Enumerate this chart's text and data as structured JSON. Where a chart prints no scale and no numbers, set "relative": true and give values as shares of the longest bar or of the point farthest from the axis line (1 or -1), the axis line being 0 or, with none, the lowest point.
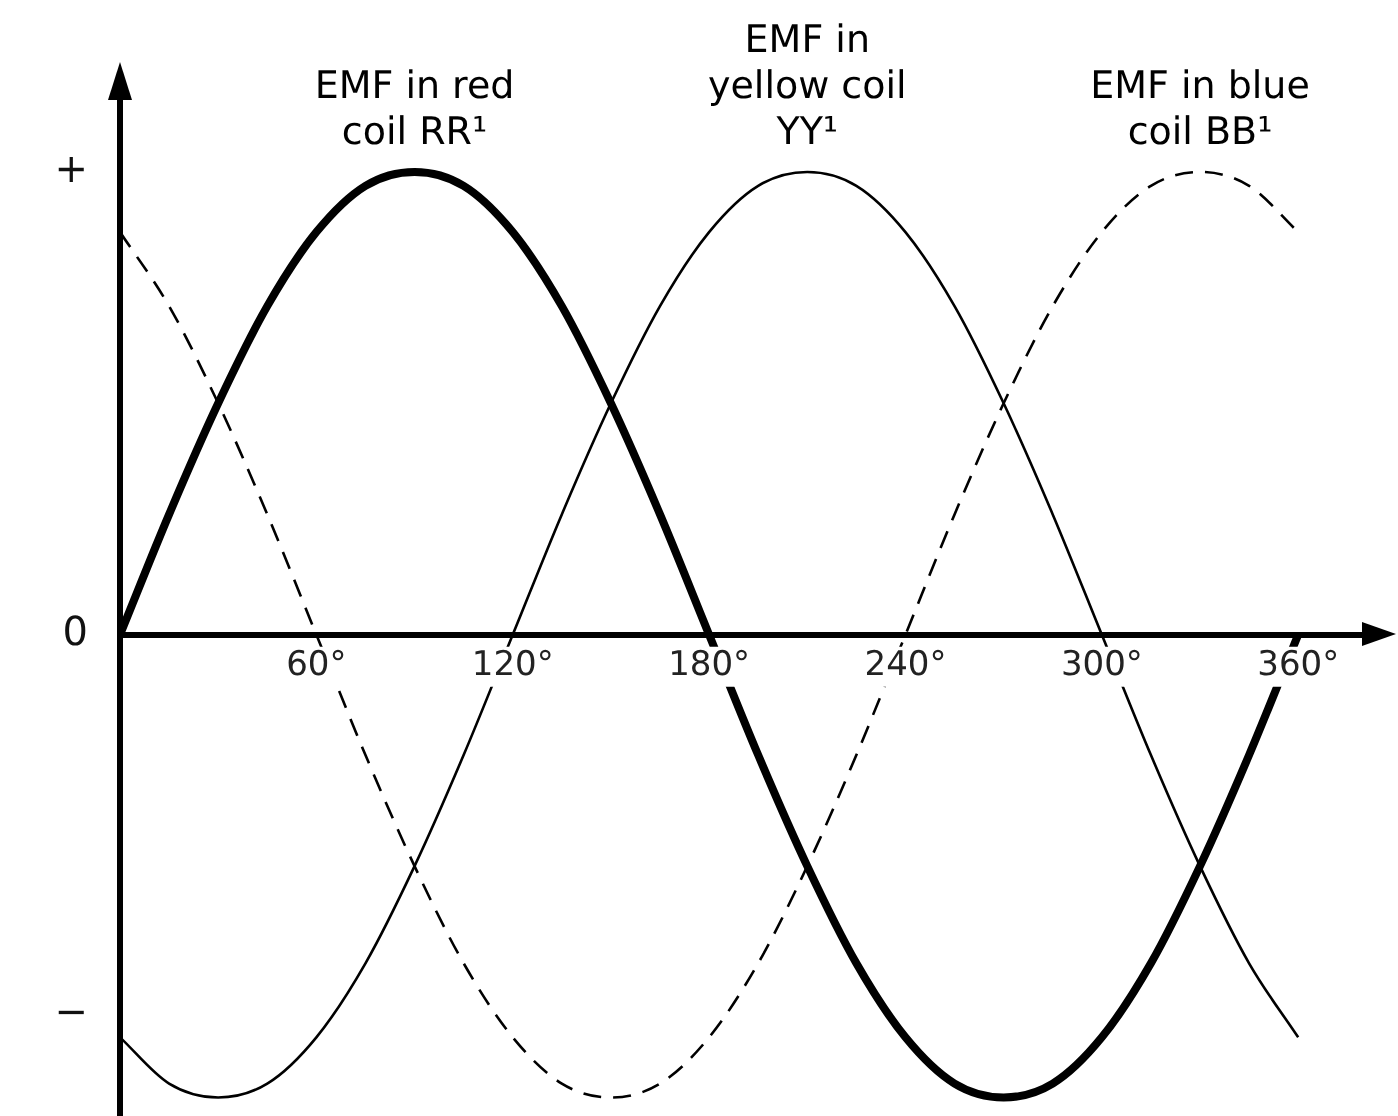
{
  "chart_data": {
    "type": "line",
    "relative": true,
    "marker": "none",
    "x": [
      0,
      15,
      30,
      45,
      60,
      75,
      90,
      105,
      120,
      135,
      150,
      165,
      180,
      195,
      210,
      225,
      240,
      255,
      270,
      285,
      300,
      315,
      330,
      345,
      360
    ],
    "xlim": [
      0,
      385
    ],
    "xticks": [
      {
        "value": 60,
        "label": "60°"
      },
      {
        "value": 120,
        "label": "120°"
      },
      {
        "value": 180,
        "label": "180°"
      },
      {
        "value": 240,
        "label": "240°"
      },
      {
        "value": 300,
        "label": "300°"
      },
      {
        "value": 360,
        "label": "360°"
      }
    ],
    "series": [
      {
        "name": "EMF in red coil RR¹",
        "color": "#000000",
        "line_style": "solid",
        "values": [
          0,
          0.26,
          0.5,
          0.71,
          0.87,
          0.97,
          1,
          0.97,
          0.87,
          0.71,
          0.5,
          0.26,
          0,
          -0.26,
          -0.5,
          -0.71,
          -0.87,
          -0.97,
          -1,
          -0.97,
          -0.87,
          -0.71,
          -0.5,
          -0.26,
          0
        ]
      },
      {
        "name": "EMF in yellow coil YY¹",
        "color": "#000000",
        "line_style": "solid",
        "values": [
          -0.87,
          -0.97,
          -1,
          -0.97,
          -0.87,
          -0.71,
          -0.5,
          -0.26,
          0,
          0.26,
          0.5,
          0.71,
          0.87,
          0.97,
          1,
          0.97,
          0.87,
          0.71,
          0.5,
          0.26,
          0,
          -0.26,
          -0.5,
          -0.71,
          -0.87
        ]
      },
      {
        "name": "EMF in blue coil BB¹",
        "color": "#000000",
        "line_style": "dashed",
        "values": [
          0.87,
          0.71,
          0.5,
          0.26,
          0,
          -0.26,
          -0.5,
          -0.71,
          -0.87,
          -0.97,
          -1,
          -0.97,
          -0.87,
          -0.71,
          -0.5,
          -0.26,
          0,
          0.26,
          0.5,
          0.71,
          0.87,
          0.97,
          1,
          0.97,
          0.87
        ]
      }
    ],
    "annotations": [
      "+",
      "0",
      "−"
    ]
  }
}
